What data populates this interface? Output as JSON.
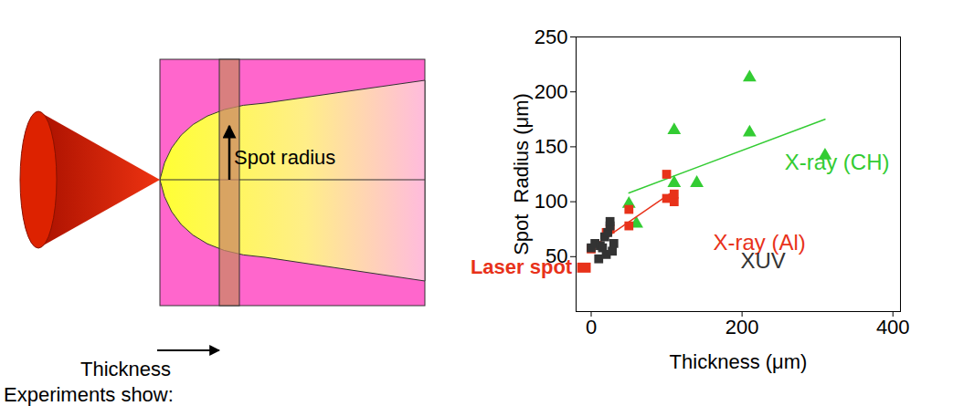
{
  "chart_data": {
    "type": "scatter",
    "x_label": "Thickness (μm)",
    "y_label": "Spot  Radius (μm)",
    "xlim": [
      -20,
      410
    ],
    "xticks": [
      0,
      200,
      400
    ],
    "ylim": [
      0,
      250
    ],
    "yticks": [
      50,
      100,
      150,
      200,
      250
    ],
    "grid": false,
    "series": [
      {
        "name": "X-ray (CH)",
        "color": "#33cc33",
        "marker": "triangle",
        "x": [
          50,
          60,
          110,
          110,
          140,
          210,
          210,
          310
        ],
        "values": [
          98,
          80,
          117,
          165,
          117,
          213,
          163,
          142
        ],
        "fit": {
          "x": [
            50,
            310
          ],
          "values": [
            108,
            175
          ]
        }
      },
      {
        "name": "X-ray (Al)",
        "color": "#e8321a",
        "marker": "square",
        "x": [
          0,
          20,
          25,
          50,
          50,
          100,
          100,
          110,
          110
        ],
        "values": [
          57,
          72,
          75,
          78,
          93,
          103,
          125,
          100,
          107
        ],
        "fit": {
          "x": [
            0,
            110
          ],
          "values": [
            58,
            110
          ]
        }
      },
      {
        "name": "XUV",
        "color": "#333333",
        "marker": "square",
        "x": [
          0,
          5,
          10,
          12,
          15,
          18,
          20,
          22,
          25,
          25,
          28,
          30
        ],
        "values": [
          58,
          62,
          48,
          60,
          58,
          68,
          52,
          72,
          78,
          82,
          55,
          62
        ]
      }
    ],
    "laser_spot": {
      "label": "Laser spot",
      "color": "#e8321a",
      "x0": -18,
      "x1": 0,
      "y": 40
    }
  },
  "diagram": {
    "spot_radius": "Spot radius",
    "thickness": "Thickness",
    "note": "Experiments show:"
  }
}
